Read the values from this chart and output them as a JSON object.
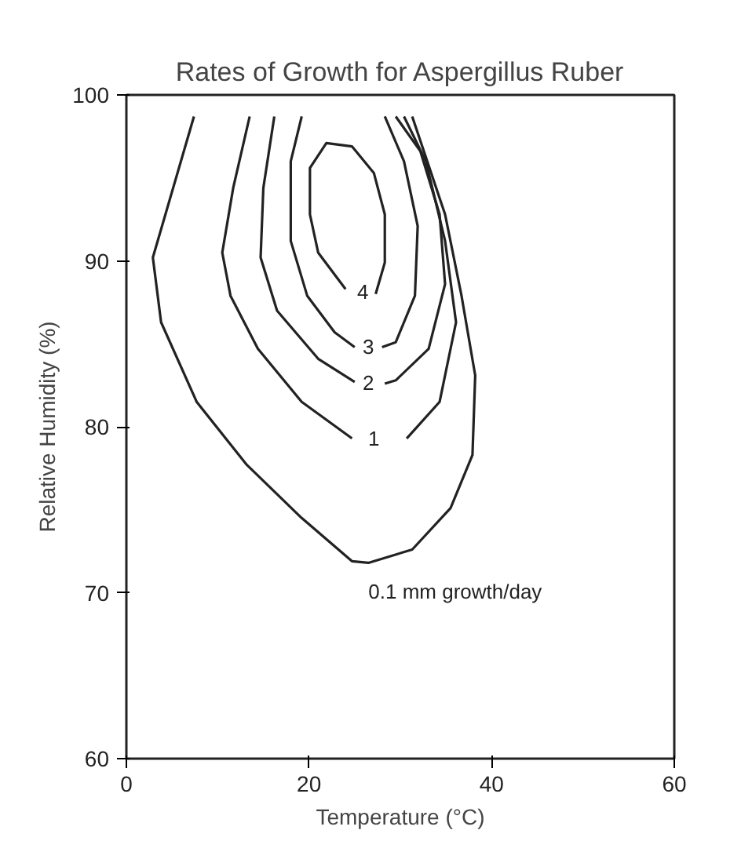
{
  "chart_data": {
    "type": "line",
    "title": "Rates of Growth for Aspergillus Ruber",
    "xlabel": "Temperature (°C)",
    "ylabel": "Relative Humidity (%)",
    "xlim": [
      0,
      60
    ],
    "ylim": [
      60,
      100
    ],
    "xticks": [
      0,
      20,
      40,
      60
    ],
    "yticks": [
      60,
      70,
      80,
      90,
      100
    ],
    "grid": false,
    "marker": "none",
    "line_style": "solid",
    "series": [
      {
        "name": "0.1 mm growth/day",
        "color": "#222222",
        "x": [
          7.4,
          2.9,
          3.8,
          7.7,
          13.2,
          19.2,
          24.7,
          26.5,
          31.3,
          35.5,
          37.9,
          38.2,
          36.7,
          34.9,
          31.3
        ],
        "values": [
          98.7,
          90.2,
          86.3,
          81.5,
          77.7,
          74.5,
          71.9,
          71.8,
          72.6,
          75.1,
          78.3,
          83.1,
          87.9,
          92.8,
          98.7
        ]
      },
      {
        "name": "1",
        "color": "#222222",
        "x": [
          13.5,
          11.7,
          10.5,
          11.4,
          14.4,
          19.2,
          24.7,
          27.1,
          30.7,
          34.3,
          36.1,
          34.9,
          32.8,
          30.4
        ],
        "values": [
          98.7,
          94.4,
          90.5,
          87.9,
          84.7,
          81.5,
          79.3,
          null,
          79.3,
          81.5,
          86.3,
          91.2,
          96.0,
          98.7
        ]
      },
      {
        "name": "2",
        "color": "#222222",
        "x": [
          16.2,
          15.0,
          14.7,
          16.5,
          21.0,
          25.0,
          26.5,
          28.3,
          29.5,
          33.1,
          34.9,
          34.3,
          32.2,
          29.5
        ],
        "values": [
          98.7,
          94.4,
          90.2,
          87.0,
          84.1,
          82.7,
          null,
          82.6,
          82.8,
          84.7,
          88.6,
          92.8,
          96.6,
          98.7
        ]
      },
      {
        "name": "3",
        "color": "#222222",
        "x": [
          19.2,
          18.0,
          18.0,
          19.8,
          22.8,
          25.0,
          26.5,
          28.0,
          29.5,
          31.6,
          31.9,
          30.4,
          28.3
        ],
        "values": [
          98.7,
          96.0,
          91.2,
          87.9,
          85.7,
          84.8,
          null,
          84.8,
          85.1,
          87.9,
          92.1,
          96.0,
          98.7
        ]
      },
      {
        "name": "4",
        "color": "#222222",
        "x": [
          27.3,
          28.3,
          28.3,
          27.1,
          24.7,
          21.9,
          20.1,
          20.1,
          21.0,
          24.0,
          25.9,
          27.1
        ],
        "values": [
          88.0,
          89.9,
          92.8,
          95.3,
          96.9,
          97.1,
          95.6,
          92.8,
          90.5,
          88.3,
          null,
          88.0
        ]
      }
    ]
  }
}
